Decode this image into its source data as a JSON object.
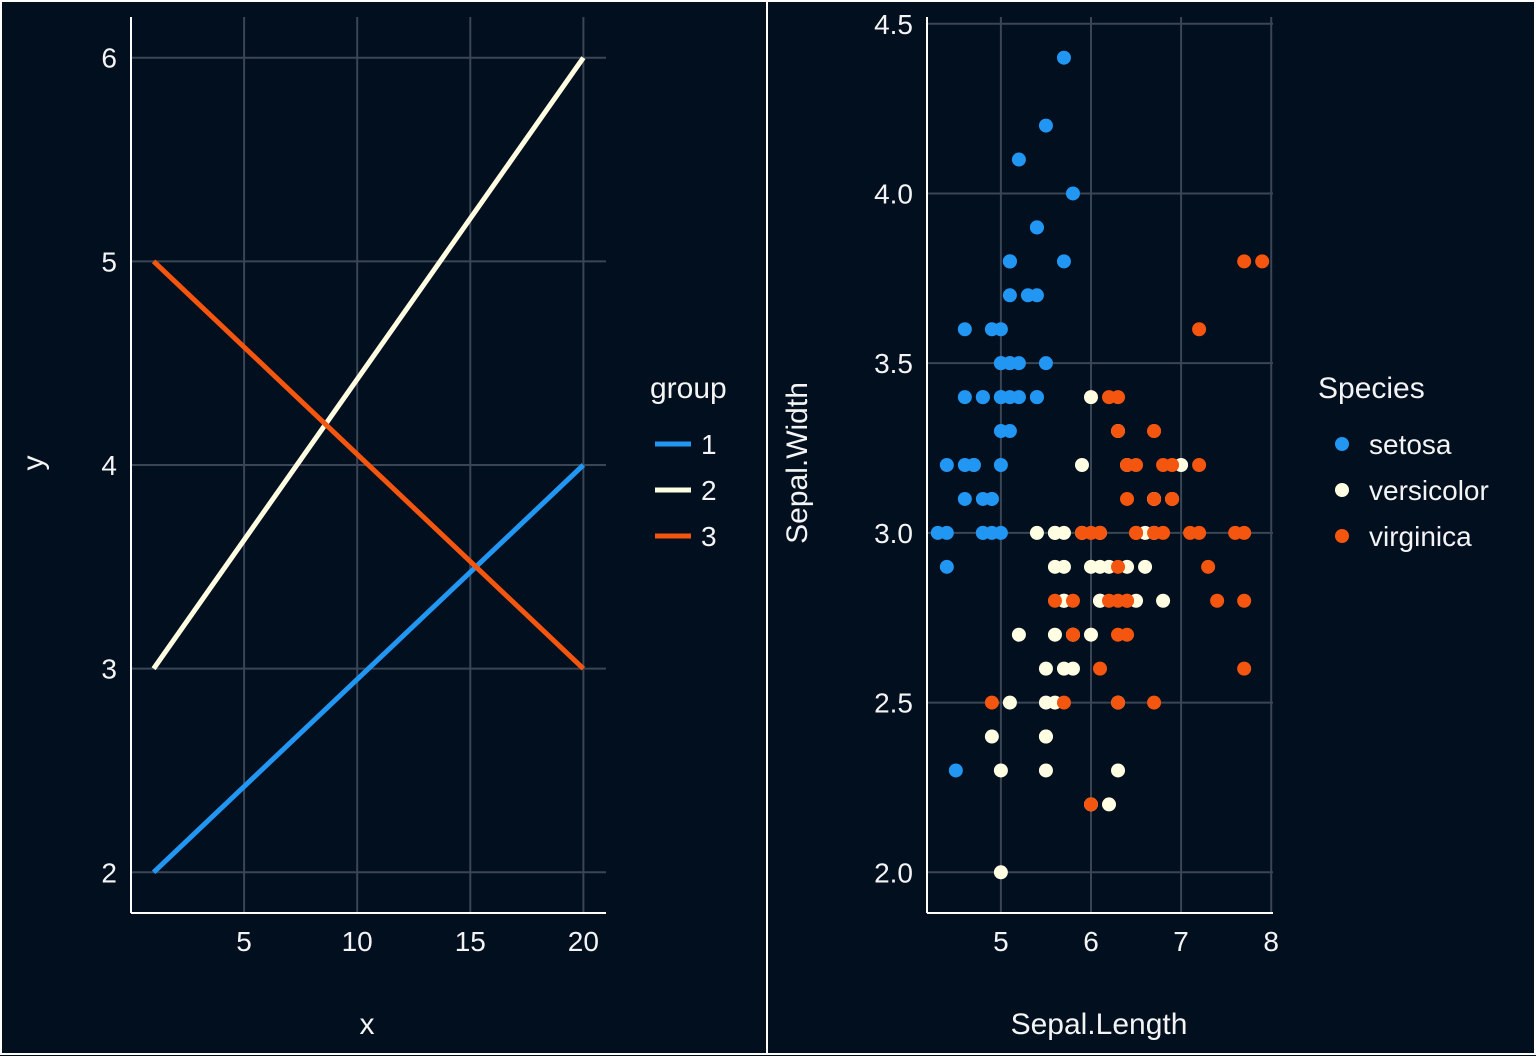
{
  "colors": {
    "background": "#020f1e",
    "grid": "#3a4656",
    "text": "#f4f4f4",
    "blue": "#2196f3",
    "cream": "#fffde2",
    "orange": "#f4560f"
  },
  "chart_data": [
    {
      "type": "line",
      "xlabel": "x",
      "ylabel": "y",
      "xlim": [
        0,
        21
      ],
      "ylim": [
        1.8,
        6.2
      ],
      "xticks": [
        5,
        10,
        15,
        20
      ],
      "yticks": [
        2,
        3,
        4,
        5,
        6
      ],
      "grid": true,
      "legend": {
        "title": "group",
        "position": "right"
      },
      "series": [
        {
          "name": "1",
          "color": "#2196f3",
          "x": [
            1,
            20
          ],
          "y": [
            2,
            4
          ]
        },
        {
          "name": "2",
          "color": "#fffde2",
          "x": [
            1,
            20
          ],
          "y": [
            3,
            6
          ]
        },
        {
          "name": "3",
          "color": "#f4560f",
          "x": [
            1,
            20
          ],
          "y": [
            5,
            3
          ]
        }
      ]
    },
    {
      "type": "scatter",
      "xlabel": "Sepal.Length",
      "ylabel": "Sepal.Width",
      "xlim": [
        4.18,
        8.02
      ],
      "ylim": [
        1.88,
        4.52
      ],
      "xticks": [
        5,
        6,
        7,
        8
      ],
      "yticks": [
        "2.0",
        "2.5",
        "3.0",
        "3.5",
        "4.0",
        "4.5"
      ],
      "grid": true,
      "legend": {
        "title": "Species",
        "position": "right"
      },
      "series": [
        {
          "name": "setosa",
          "color": "#2196f3",
          "points": [
            [
              5.1,
              3.5
            ],
            [
              4.9,
              3.0
            ],
            [
              4.7,
              3.2
            ],
            [
              4.6,
              3.1
            ],
            [
              5.0,
              3.6
            ],
            [
              5.4,
              3.9
            ],
            [
              4.6,
              3.4
            ],
            [
              5.0,
              3.4
            ],
            [
              4.4,
              2.9
            ],
            [
              4.9,
              3.1
            ],
            [
              5.4,
              3.7
            ],
            [
              4.8,
              3.4
            ],
            [
              4.8,
              3.0
            ],
            [
              4.3,
              3.0
            ],
            [
              5.8,
              4.0
            ],
            [
              5.7,
              4.4
            ],
            [
              5.4,
              3.9
            ],
            [
              5.1,
              3.5
            ],
            [
              5.7,
              3.8
            ],
            [
              5.1,
              3.8
            ],
            [
              5.4,
              3.4
            ],
            [
              5.1,
              3.7
            ],
            [
              4.6,
              3.6
            ],
            [
              5.1,
              3.3
            ],
            [
              4.8,
              3.4
            ],
            [
              5.0,
              3.0
            ],
            [
              5.0,
              3.4
            ],
            [
              5.2,
              3.5
            ],
            [
              5.2,
              3.4
            ],
            [
              4.7,
              3.2
            ],
            [
              4.8,
              3.1
            ],
            [
              5.4,
              3.4
            ],
            [
              5.2,
              4.1
            ],
            [
              5.5,
              4.2
            ],
            [
              4.9,
              3.1
            ],
            [
              5.0,
              3.2
            ],
            [
              5.5,
              3.5
            ],
            [
              4.9,
              3.6
            ],
            [
              4.4,
              3.0
            ],
            [
              5.1,
              3.4
            ],
            [
              5.0,
              3.5
            ],
            [
              4.5,
              2.3
            ],
            [
              4.4,
              3.2
            ],
            [
              5.0,
              3.5
            ],
            [
              5.1,
              3.8
            ],
            [
              4.8,
              3.0
            ],
            [
              5.1,
              3.8
            ],
            [
              4.6,
              3.2
            ],
            [
              5.3,
              3.7
            ],
            [
              5.0,
              3.3
            ]
          ]
        },
        {
          "name": "versicolor",
          "color": "#fffde2",
          "points": [
            [
              7.0,
              3.2
            ],
            [
              6.4,
              3.2
            ],
            [
              6.9,
              3.1
            ],
            [
              5.5,
              2.3
            ],
            [
              6.5,
              2.8
            ],
            [
              5.7,
              2.8
            ],
            [
              6.3,
              3.3
            ],
            [
              4.9,
              2.4
            ],
            [
              6.6,
              2.9
            ],
            [
              5.2,
              2.7
            ],
            [
              5.0,
              2.0
            ],
            [
              5.9,
              3.0
            ],
            [
              6.0,
              2.2
            ],
            [
              6.1,
              2.9
            ],
            [
              5.6,
              2.9
            ],
            [
              6.7,
              3.1
            ],
            [
              5.6,
              3.0
            ],
            [
              5.8,
              2.7
            ],
            [
              6.2,
              2.2
            ],
            [
              5.6,
              2.5
            ],
            [
              5.9,
              3.2
            ],
            [
              6.1,
              2.8
            ],
            [
              6.3,
              2.5
            ],
            [
              6.1,
              2.8
            ],
            [
              6.4,
              2.9
            ],
            [
              6.6,
              3.0
            ],
            [
              6.8,
              2.8
            ],
            [
              6.7,
              3.0
            ],
            [
              6.0,
              2.9
            ],
            [
              5.7,
              2.6
            ],
            [
              5.5,
              2.4
            ],
            [
              5.5,
              2.4
            ],
            [
              5.8,
              2.7
            ],
            [
              6.0,
              2.7
            ],
            [
              5.4,
              3.0
            ],
            [
              6.0,
              3.4
            ],
            [
              6.7,
              3.1
            ],
            [
              6.3,
              2.3
            ],
            [
              5.6,
              3.0
            ],
            [
              5.5,
              2.5
            ],
            [
              5.5,
              2.6
            ],
            [
              6.1,
              3.0
            ],
            [
              5.8,
              2.6
            ],
            [
              5.0,
              2.3
            ],
            [
              5.6,
              2.7
            ],
            [
              5.7,
              3.0
            ],
            [
              5.7,
              2.9
            ],
            [
              6.2,
              2.9
            ],
            [
              5.1,
              2.5
            ],
            [
              5.7,
              2.8
            ]
          ]
        },
        {
          "name": "virginica",
          "color": "#f4560f",
          "points": [
            [
              6.3,
              3.3
            ],
            [
              5.8,
              2.7
            ],
            [
              7.1,
              3.0
            ],
            [
              6.3,
              2.9
            ],
            [
              6.5,
              3.0
            ],
            [
              7.6,
              3.0
            ],
            [
              4.9,
              2.5
            ],
            [
              7.3,
              2.9
            ],
            [
              6.7,
              2.5
            ],
            [
              7.2,
              3.6
            ],
            [
              6.5,
              3.2
            ],
            [
              6.4,
              2.7
            ],
            [
              6.8,
              3.0
            ],
            [
              5.7,
              2.5
            ],
            [
              5.8,
              2.8
            ],
            [
              6.4,
              3.2
            ],
            [
              6.5,
              3.0
            ],
            [
              7.7,
              3.8
            ],
            [
              7.7,
              2.6
            ],
            [
              6.0,
              2.2
            ],
            [
              6.9,
              3.2
            ],
            [
              5.6,
              2.8
            ],
            [
              7.7,
              2.8
            ],
            [
              6.3,
              2.7
            ],
            [
              6.7,
              3.3
            ],
            [
              7.2,
              3.2
            ],
            [
              6.2,
              2.8
            ],
            [
              6.1,
              3.0
            ],
            [
              6.4,
              2.8
            ],
            [
              7.2,
              3.0
            ],
            [
              7.4,
              2.8
            ],
            [
              7.9,
              3.8
            ],
            [
              6.4,
              2.8
            ],
            [
              6.3,
              2.8
            ],
            [
              6.1,
              2.6
            ],
            [
              7.7,
              3.0
            ],
            [
              6.3,
              3.4
            ],
            [
              6.4,
              3.1
            ],
            [
              6.0,
              3.0
            ],
            [
              6.9,
              3.1
            ],
            [
              6.7,
              3.1
            ],
            [
              6.9,
              3.1
            ],
            [
              5.8,
              2.7
            ],
            [
              6.8,
              3.2
            ],
            [
              6.7,
              3.3
            ],
            [
              6.7,
              3.0
            ],
            [
              6.3,
              2.5
            ],
            [
              6.5,
              3.0
            ],
            [
              6.2,
              3.4
            ],
            [
              5.9,
              3.0
            ]
          ]
        }
      ]
    }
  ]
}
